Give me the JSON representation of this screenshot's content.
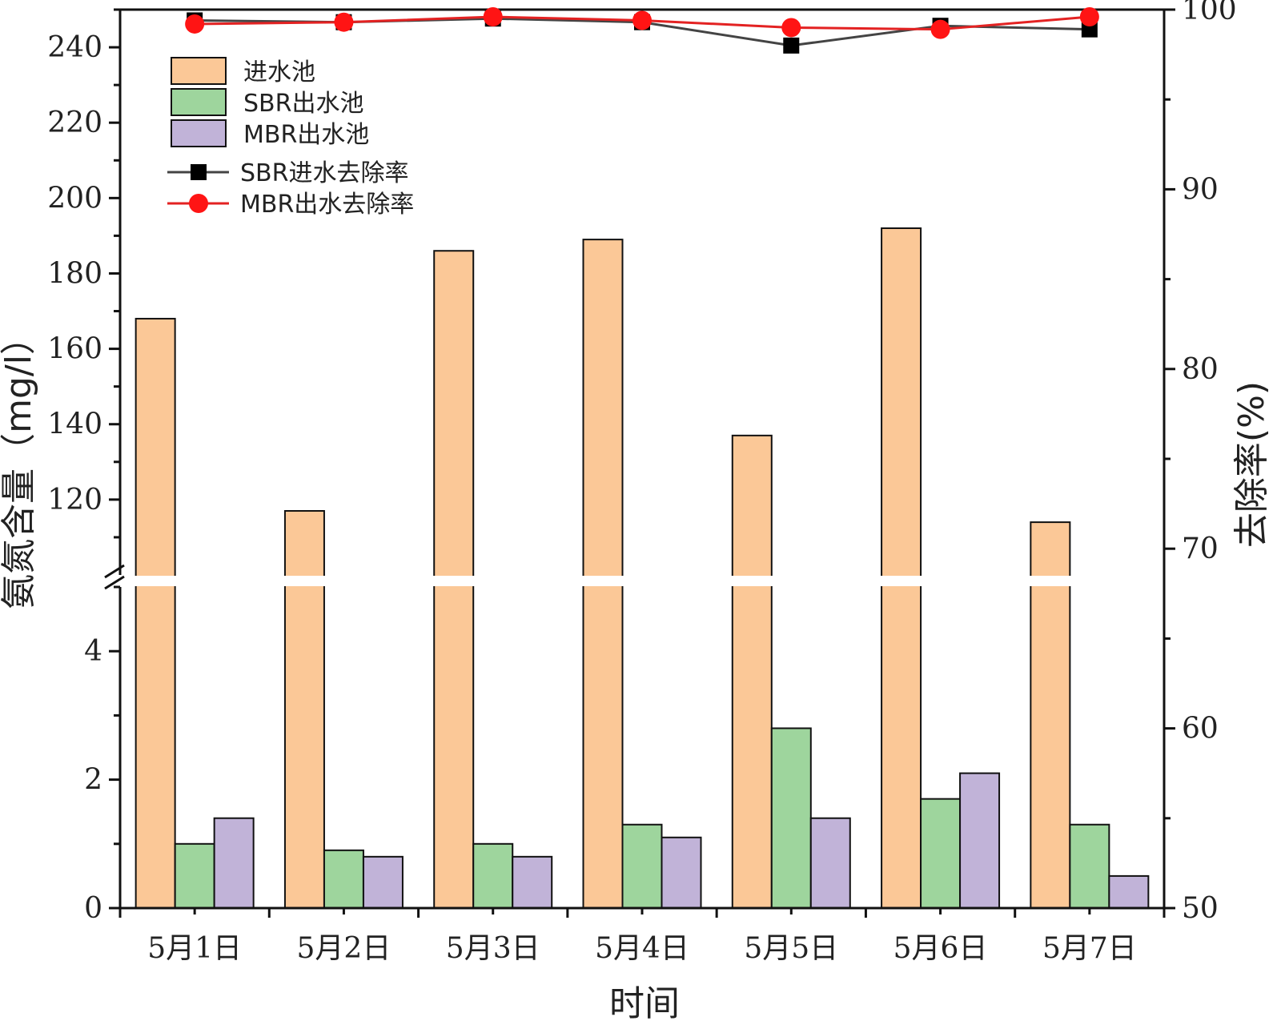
{
  "chart_data": {
    "type": "bar+line",
    "categories": [
      "5月1日",
      "5月2日",
      "5月3日",
      "5月4日",
      "5月5日",
      "5月6日",
      "5月7日"
    ],
    "xlabel": "时间",
    "ylabel_left": "氨氮含量（mg/l）",
    "ylabel_right": "去除率(%)",
    "left_axis_broken": true,
    "left_axis_lower_range": [
      0,
      5
    ],
    "left_axis_upper_range": [
      100,
      250
    ],
    "left_ticks_lower": [
      "0",
      "2",
      "4"
    ],
    "left_ticks_upper": [
      "120",
      "140",
      "160",
      "180",
      "200",
      "220",
      "240"
    ],
    "right_axis_range": [
      50,
      100
    ],
    "right_ticks": [
      "50",
      "60",
      "70",
      "80",
      "90",
      "100"
    ],
    "bar_series": [
      {
        "name": "进水池",
        "color": "#FBC897",
        "values": [
          168,
          117,
          186,
          189,
          137,
          192,
          114
        ]
      },
      {
        "name": "SBR出水池",
        "color": "#9ED59D",
        "values": [
          1.0,
          0.9,
          1.0,
          1.3,
          2.8,
          1.7,
          1.3
        ]
      },
      {
        "name": "MBR出水池",
        "color": "#C1B3D8",
        "values": [
          1.4,
          0.8,
          0.8,
          1.1,
          1.4,
          2.1,
          0.5
        ]
      }
    ],
    "line_series": [
      {
        "name": "SBR进水去除率",
        "color": "#444444",
        "marker": "square",
        "values": [
          99.4,
          99.3,
          99.5,
          99.3,
          98.0,
          99.1,
          98.9
        ]
      },
      {
        "name": "MBR出水去除率",
        "color": "#E32222",
        "marker": "circle",
        "values": [
          99.2,
          99.3,
          99.6,
          99.4,
          99.0,
          98.9,
          99.6
        ]
      }
    ],
    "legend_position": "top-left"
  }
}
